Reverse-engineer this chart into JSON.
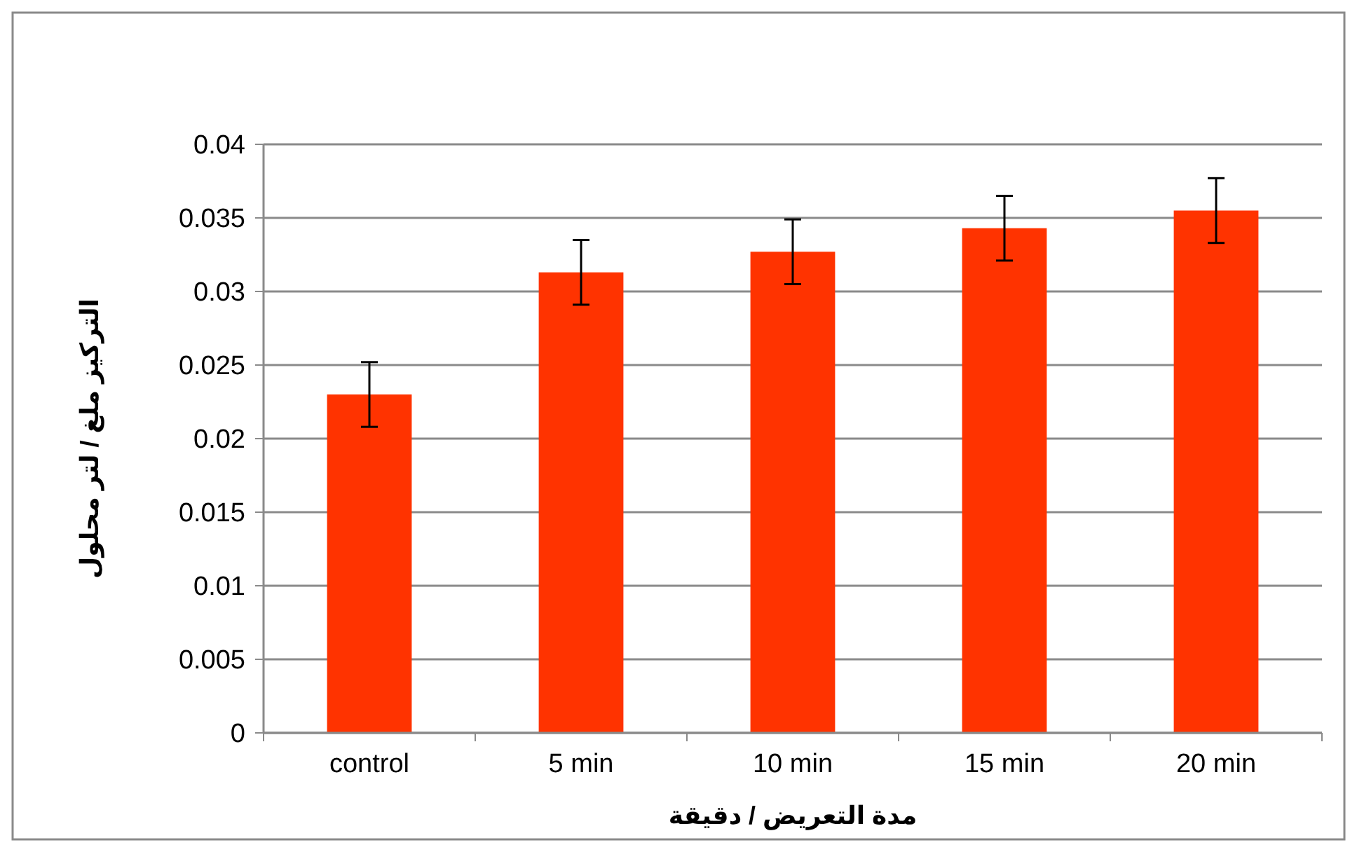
{
  "chart_data": {
    "type": "bar",
    "xlabel": "مدة التعريض / دقيقة",
    "ylabel": "التركيز ملغ / لتر محلول",
    "categories": [
      "control",
      "5 min",
      "10 min",
      "15 min",
      "20 min"
    ],
    "values": [
      0.023,
      0.0313,
      0.0327,
      0.0343,
      0.0355
    ],
    "errors": [
      0.0022,
      0.0022,
      0.0022,
      0.0022,
      0.0022
    ],
    "color": "#ff3300",
    "ylim": [
      0,
      0.04
    ],
    "yticks": [
      0,
      0.005,
      0.01,
      0.015,
      0.02,
      0.025,
      0.03,
      0.035,
      0.04
    ],
    "grid": "y"
  }
}
